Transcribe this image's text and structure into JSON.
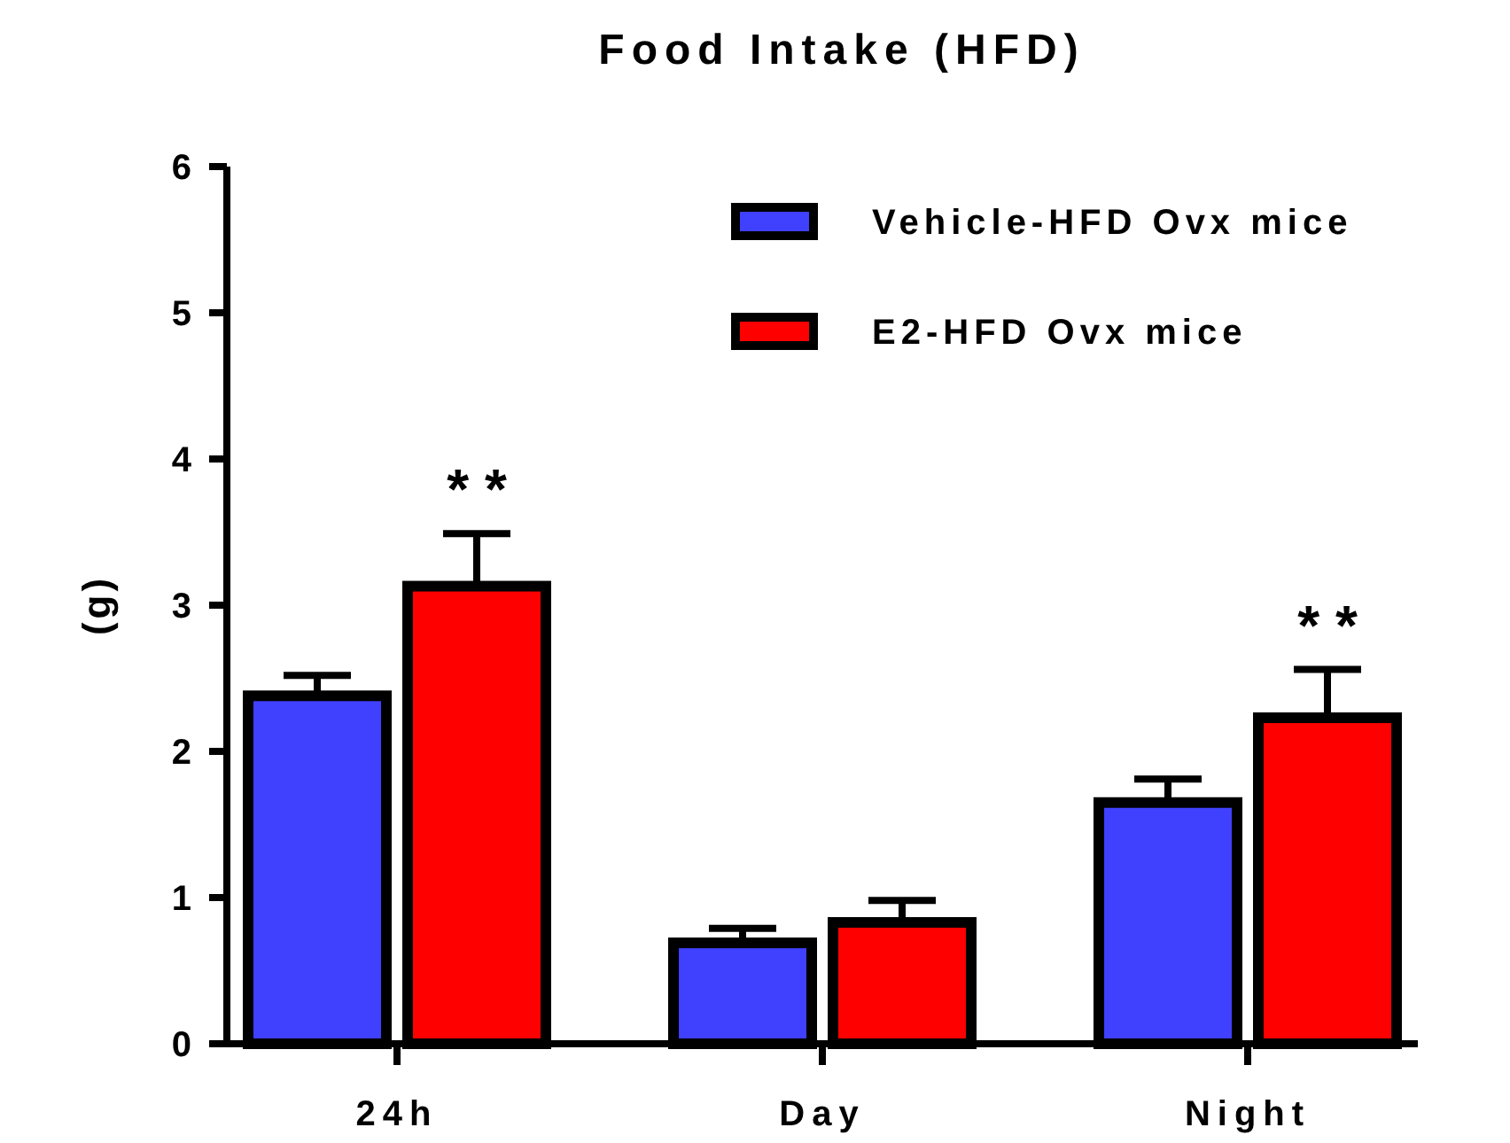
{
  "chart_data": {
    "type": "bar",
    "title": "Food Intake (HFD)",
    "ylabel": "(g)",
    "categories": [
      "24h",
      "Day",
      "Night"
    ],
    "series": [
      {
        "name": "Vehicle-HFD Ovx mice",
        "color": "#4040ff",
        "values": [
          2.38,
          0.69,
          1.65
        ],
        "errors": [
          0.14,
          0.1,
          0.16
        ]
      },
      {
        "name": "E2-HFD Ovx mice",
        "color": "#ff0000",
        "values": [
          3.13,
          0.83,
          2.23
        ],
        "errors": [
          0.36,
          0.15,
          0.33
        ],
        "value_labels": [
          "* *",
          null,
          "* *"
        ]
      }
    ],
    "ylim": [
      0,
      6
    ],
    "yticks": [
      0,
      1,
      2,
      3,
      4,
      5,
      6
    ],
    "legend": "top right"
  }
}
